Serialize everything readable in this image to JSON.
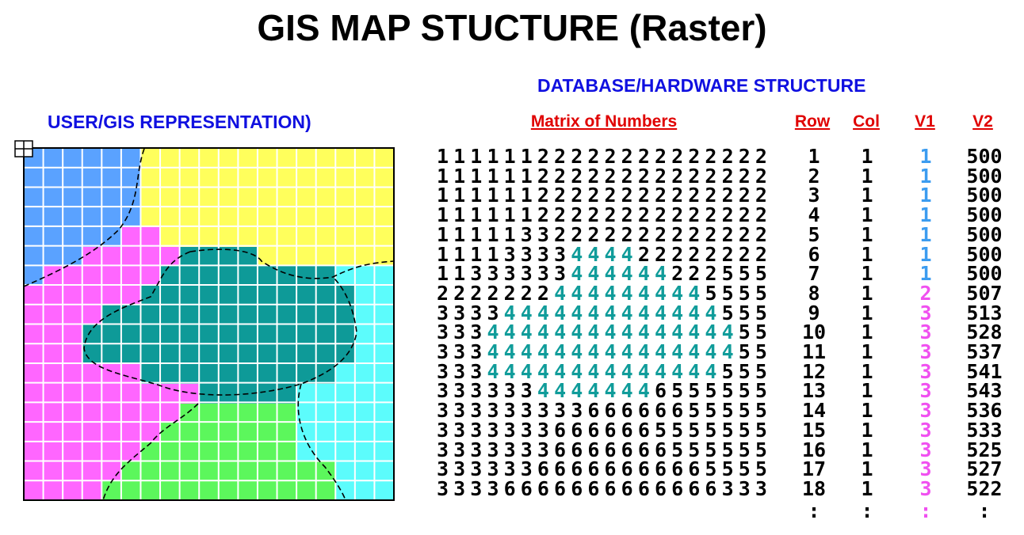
{
  "title": "GIS MAP STUCTURE (Raster)",
  "left": {
    "heading": "USER/GIS REPRESENTATION)"
  },
  "right": {
    "heading": "DATABASE/HARDWARE STRUCTURE",
    "columns": {
      "matrix": "Matrix of Numbers",
      "row": "Row",
      "col": "Col",
      "v1": "V1",
      "v2": "V2"
    },
    "rows": [
      {
        "matrix": "11111122222222222222",
        "row": 1,
        "col": 1,
        "v1": 1,
        "v2": 500
      },
      {
        "matrix": "11111122222222222222",
        "row": 2,
        "col": 1,
        "v1": 1,
        "v2": 500
      },
      {
        "matrix": "11111122222222222222",
        "row": 3,
        "col": 1,
        "v1": 1,
        "v2": 500
      },
      {
        "matrix": "11111122222222222222",
        "row": 4,
        "col": 1,
        "v1": 1,
        "v2": 500
      },
      {
        "matrix": "11111332222222222222",
        "row": 5,
        "col": 1,
        "v1": 1,
        "v2": 500
      },
      {
        "matrix": "11113333444422222222",
        "row": 6,
        "col": 1,
        "v1": 1,
        "v2": 500
      },
      {
        "matrix": "11333333444444222555",
        "row": 7,
        "col": 1,
        "v1": 1,
        "v2": 500
      },
      {
        "matrix": "22222224444444445555",
        "row": 8,
        "col": 1,
        "v1": 2,
        "v2": 507
      },
      {
        "matrix": "33334444444444444555",
        "row": 9,
        "col": 1,
        "v1": 3,
        "v2": 513
      },
      {
        "matrix": "33344444444444444455",
        "row": 10,
        "col": 1,
        "v1": 3,
        "v2": 528
      },
      {
        "matrix": "33344444444444444455",
        "row": 11,
        "col": 1,
        "v1": 3,
        "v2": 537
      },
      {
        "matrix": "33344444444444444555",
        "row": 12,
        "col": 1,
        "v1": 3,
        "v2": 541
      },
      {
        "matrix": "33333344444446555555",
        "row": 13,
        "col": 1,
        "v1": 3,
        "v2": 543
      },
      {
        "matrix": "33333333366666655555",
        "row": 14,
        "col": 1,
        "v1": 3,
        "v2": 536
      },
      {
        "matrix": "33333336666665555555",
        "row": 15,
        "col": 1,
        "v1": 3,
        "v2": 533
      },
      {
        "matrix": "33333336666666555555",
        "row": 16,
        "col": 1,
        "v1": 3,
        "v2": 525
      },
      {
        "matrix": "33333366666666665555",
        "row": 17,
        "col": 1,
        "v1": 3,
        "v2": 527
      },
      {
        "matrix": "33336666666666666333",
        "row": 18,
        "col": 1,
        "v1": 3,
        "v2": 522
      }
    ],
    "continuation": {
      "row": ":",
      "col": ":",
      "v1": ":",
      "v2": ":"
    }
  }
}
